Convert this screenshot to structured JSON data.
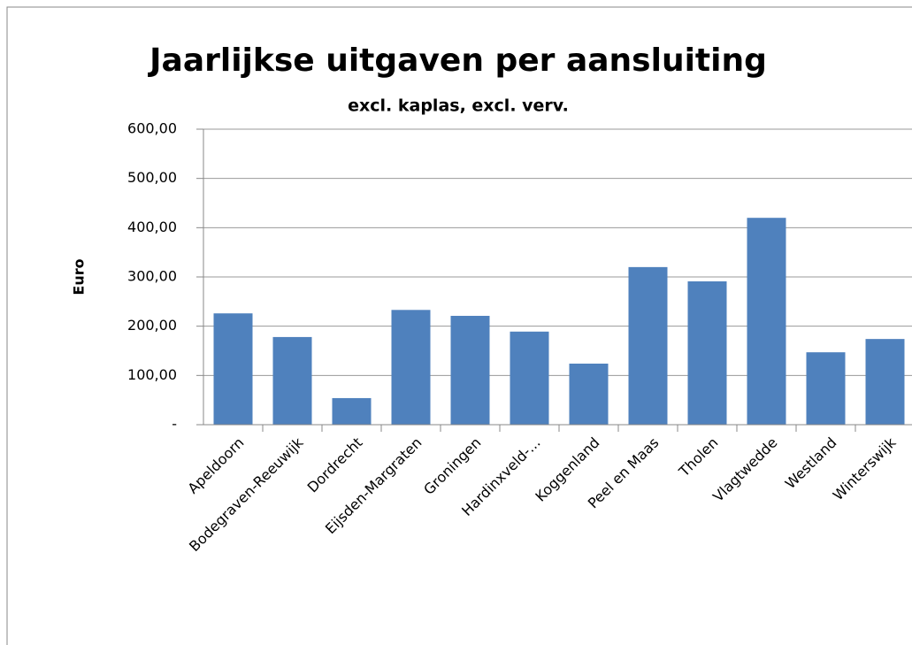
{
  "chart_data": {
    "type": "bar",
    "title": "Jaarlijkse uitgaven per aansluiting",
    "subtitle": "excl. kaplas, excl. verv.",
    "y_label": "Euro",
    "categories": [
      "Apeldoorn",
      "Bodegraven-Reeuwijk",
      "Dordrecht",
      "Eijsden-Margraten",
      "Groningen",
      "Hardinxveld-...",
      "Koggenland",
      "Peel en Maas",
      "Tholen",
      "Vlagtwedde",
      "Westland",
      "Winterswijk"
    ],
    "values": [
      226,
      178,
      54,
      233,
      221,
      189,
      124,
      320,
      291,
      420,
      147,
      174
    ],
    "color": "#4f81bd",
    "ylim": [
      0,
      600
    ],
    "yticks": [
      {
        "value": 0,
        "label": "-"
      },
      {
        "value": 100,
        "label": "100,00"
      },
      {
        "value": 200,
        "label": "200,00"
      },
      {
        "value": 300,
        "label": "300,00"
      },
      {
        "value": 400,
        "label": "400,00"
      },
      {
        "value": 500,
        "label": "500,00"
      },
      {
        "value": 600,
        "label": "600,00"
      }
    ],
    "grid": true
  }
}
